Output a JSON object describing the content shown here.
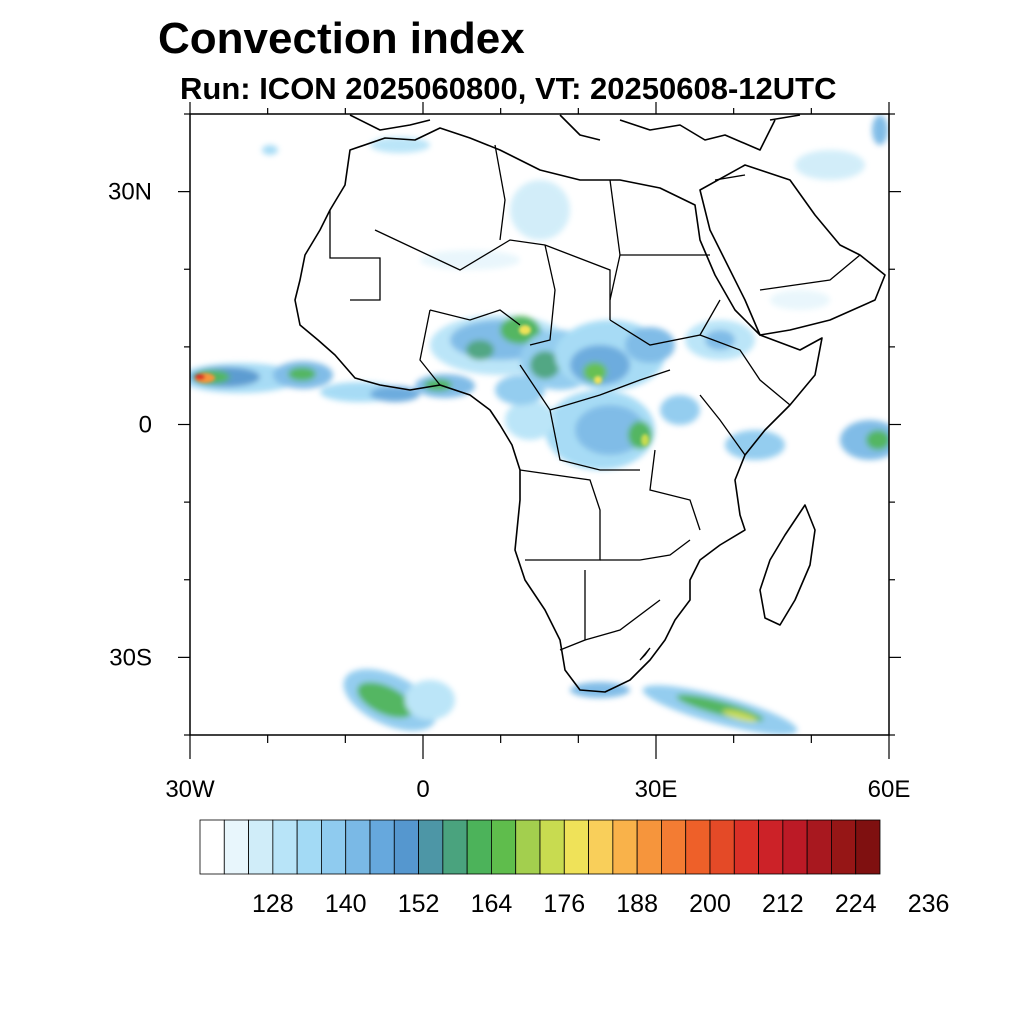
{
  "title": "Convection index",
  "subtitle": "Run: ICON 2025060800,  VT: 20250608-12UTC",
  "map": {
    "lon_range": [
      -30,
      60
    ],
    "lat_range": [
      -40,
      40
    ],
    "lat_ticks": [
      {
        "value": 30,
        "label": "30N"
      },
      {
        "value": 0,
        "label": "0"
      },
      {
        "value": -30,
        "label": "30S"
      }
    ],
    "lon_ticks": [
      {
        "value": -30,
        "label": "30W"
      },
      {
        "value": 0,
        "label": "0"
      },
      {
        "value": 30,
        "label": "30E"
      },
      {
        "value": 60,
        "label": "60E"
      }
    ],
    "minor_lat_ticks": [
      -40,
      -20,
      -10,
      10,
      20,
      40
    ],
    "minor_lon_ticks": [
      -20,
      -10,
      10,
      20,
      40,
      50
    ]
  },
  "colorbar": {
    "colors": [
      "#ffffff",
      "#e8f6fc",
      "#d0edf9",
      "#b8e4f8",
      "#a3daf5",
      "#8fcbef",
      "#7ab9e6",
      "#66a8dd",
      "#5597cf",
      "#4d96a6",
      "#4aa37e",
      "#4cb35a",
      "#5fbd4c",
      "#a3cf4e",
      "#c8db50",
      "#efe259",
      "#f9cf5a",
      "#f9b24a",
      "#f6953c",
      "#f37c33",
      "#ee6029",
      "#e44a27",
      "#da3027",
      "#cc2228",
      "#bc1a26",
      "#a8181f",
      "#961616",
      "#7f1010"
    ],
    "labels": [
      "128",
      "140",
      "152",
      "164",
      "176",
      "188",
      "200",
      "212",
      "224",
      "236"
    ]
  }
}
